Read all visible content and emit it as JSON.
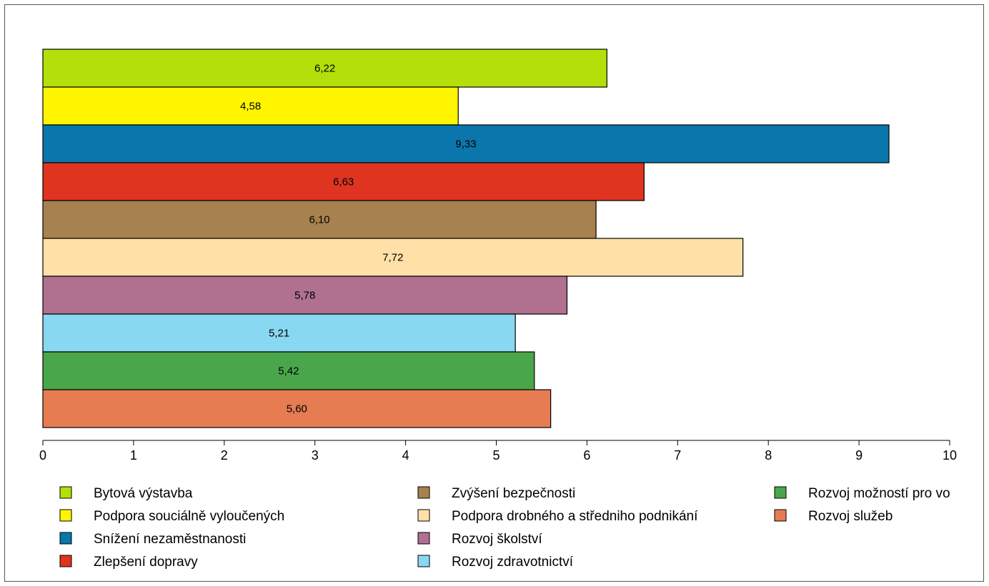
{
  "chart_data": {
    "type": "bar",
    "orientation": "horizontal",
    "title": "",
    "xlabel": "",
    "ylabel": "",
    "xlim": [
      0,
      10
    ],
    "x_ticks": [
      "0",
      "1",
      "2",
      "3",
      "4",
      "5",
      "6",
      "7",
      "8",
      "9",
      "10"
    ],
    "grid": false,
    "legend_position": "bottom",
    "categories": [
      "Bytová výstavba",
      "Podpora souciálně vyloučených",
      "Snížení nezaměstnanosti",
      "Zlepšení dopravy",
      "Zvýšení bezpečnosti",
      "Podpora drobného a středniho podnikání",
      "Rozvoj školství",
      "Rozvoj zdravotnictví",
      "Rozvoj možností pro vo",
      "Rozvoj služeb"
    ],
    "values": [
      6.22,
      4.58,
      9.33,
      6.63,
      6.1,
      7.72,
      5.78,
      5.21,
      5.42,
      5.6
    ],
    "value_labels": [
      "6,22",
      "4,58",
      "9,33",
      "6,63",
      "6,10",
      "7,72",
      "5,78",
      "5,21",
      "5,42",
      "5,60"
    ],
    "colors": [
      "#b3e00a",
      "#fff500",
      "#0a76ab",
      "#de3420",
      "#a7824e",
      "#ffe1a8",
      "#b07090",
      "#88d8f2",
      "#4aa64a",
      "#e67c52"
    ]
  }
}
